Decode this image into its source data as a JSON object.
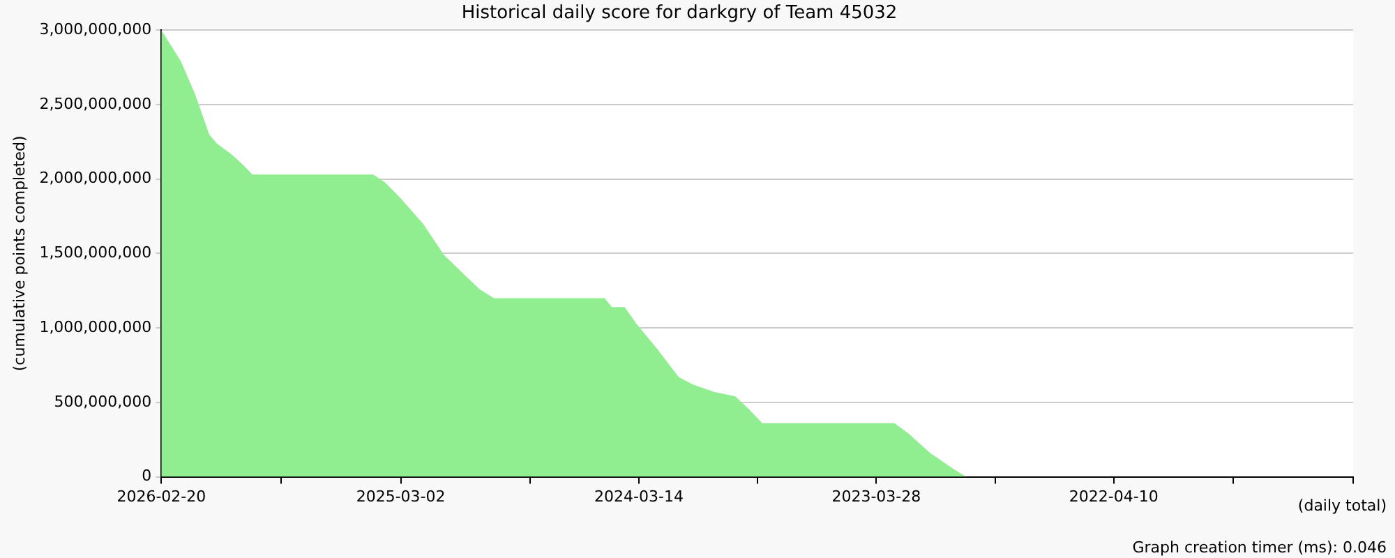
{
  "chart_data": {
    "type": "area",
    "title": "Historical daily score for darkgry of Team 45032",
    "xlabel": "(daily total)",
    "ylabel": "(cumulative points completed)",
    "x": [
      "2026-02-20",
      "2026-01-22",
      "2026-01-01",
      "2025-12-11",
      "2025-11-30",
      "2025-11-09",
      "2025-10-23",
      "2025-10-08",
      "2025-04-12",
      "2025-03-26",
      "2025-03-02",
      "2025-01-28",
      "2024-12-28",
      "2024-11-26",
      "2024-11-05",
      "2024-10-15",
      "2024-05-04",
      "2024-04-23",
      "2024-04-04",
      "2024-03-18",
      "2024-02-16",
      "2024-01-15",
      "2023-12-25",
      "2023-11-23",
      "2023-10-23",
      "2023-10-02",
      "2023-09-13",
      "2023-03-01",
      "2023-02-08",
      "2023-01-07",
      "2022-12-06",
      "2022-11-15",
      "2021-04-30"
    ],
    "series": [
      {
        "color": "#90ee90",
        "values": [
          3000000000,
          2790000000,
          2570000000,
          2300000000,
          2240000000,
          2170000000,
          2100000000,
          2030000000,
          2030000000,
          1980000000,
          1870000000,
          1700000000,
          1490000000,
          1350000000,
          1260000000,
          1200000000,
          1200000000,
          1140000000,
          1140000000,
          1030000000,
          860000000,
          670000000,
          620000000,
          570000000,
          540000000,
          450000000,
          360000000,
          360000000,
          290000000,
          160000000,
          60000000,
          0,
          0
        ]
      }
    ],
    "xlim": [
      "2026-02-20",
      "2021-04-20"
    ],
    "xticks": [
      {
        "value": "2026-02-20",
        "label": "2026-02-20"
      },
      {
        "value": "2025-08-27",
        "label": null
      },
      {
        "value": "2025-03-02",
        "label": "2025-03-02"
      },
      {
        "value": "2024-08-22",
        "label": null
      },
      {
        "value": "2024-03-14",
        "label": "2024-03-14"
      },
      {
        "value": "2023-09-20",
        "label": null
      },
      {
        "value": "2023-03-28",
        "label": "2023-03-28"
      },
      {
        "value": "2022-10-03",
        "label": null
      },
      {
        "value": "2022-04-10",
        "label": "2022-04-10"
      },
      {
        "value": "2021-10-15",
        "label": null
      },
      {
        "value": "2021-04-20",
        "label": null
      }
    ],
    "ylim": [
      0,
      3000000000
    ],
    "yticks": [
      {
        "value": 0,
        "label": "0"
      },
      {
        "value": 500000000,
        "label": "500,000,000"
      },
      {
        "value": 1000000000,
        "label": "1,000,000,000"
      },
      {
        "value": 1500000000,
        "label": "1,500,000,000"
      },
      {
        "value": 2000000000,
        "label": "2,000,000,000"
      },
      {
        "value": 2500000000,
        "label": "2,500,000,000"
      },
      {
        "value": 3000000000,
        "label": "3,000,000,000"
      }
    ],
    "grid": "y",
    "legend": false,
    "annotations": [
      "Graph creation timer (ms): 0.046"
    ]
  }
}
